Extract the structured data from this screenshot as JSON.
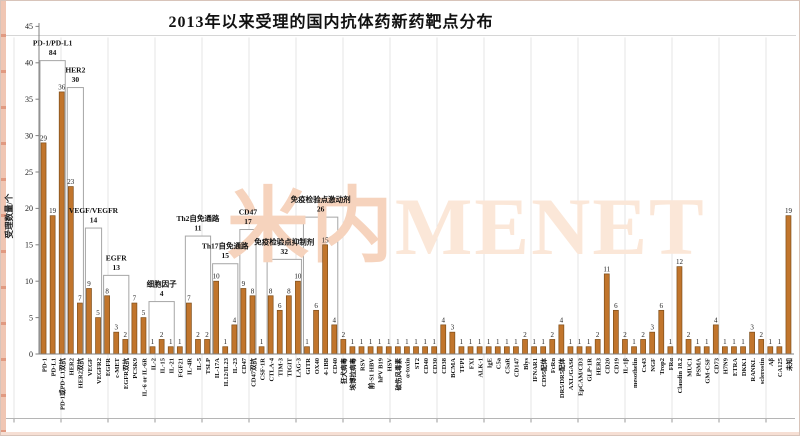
{
  "title": "2013年以来受理的国内抗体药新药靶点分布",
  "watermark": {
    "cn": "米内",
    "en": "MENET"
  },
  "colors": {
    "bar_fill": "#C1752C",
    "bar_stroke": "#7D4E1B",
    "axis": "#808080",
    "grid": "#E4E4E4",
    "box_stroke": "#A6A6A6",
    "box_fill": "#FFFFFF",
    "watermark_cn": "#F6D3BD",
    "watermark_en": "#FBE7D8",
    "text": "#1A1A1A"
  },
  "chart_data": {
    "type": "bar",
    "title": "2013年以来受理的国内抗体药新药靶点分布",
    "xlabel": "",
    "ylabel": "受理数量/个",
    "ylim": [
      0,
      45
    ],
    "ytick_step": 5,
    "grid": "vertical-light",
    "legend": "none",
    "categories": [
      "PD-1",
      "PD-L1",
      "PD-1或PD-L1双抗",
      "HER2",
      "HER2双抗",
      "VEGF",
      "VEGFR2",
      "EGFR",
      "c-MET",
      "EGFR双抗",
      "PCSK9",
      "IL-6 or IL-6R",
      "IL-2",
      "IL-15",
      "IL-21",
      "FGF21",
      "IL-4R",
      "IL-5",
      "TSLP",
      "IL-17A",
      "IL12/IL23",
      "IL-23",
      "CD47",
      "CD47双抗",
      "CSF-1R",
      "CTLA-4",
      "TIM-3",
      "TIGIT",
      "LAG-3",
      "GITR",
      "OX40",
      "4-1BB",
      "CD40",
      "狂犬病毒",
      "埃博拉病毒",
      "RSV",
      "前-S1 HBV",
      "hPV B19",
      "HSV",
      "破伤风毒素",
      "α-toxin",
      "ST2",
      "CD40",
      "CD30",
      "CD38",
      "BCMA",
      "TFPI",
      "FXI",
      "ALK-1",
      "IgE",
      "C5a",
      "C5aR",
      "CD147",
      "Blys",
      "IFNAR1",
      "CD95配体",
      "FcRn",
      "DR5/DR5配体",
      "AXL/GAS6",
      "EpCAM/CD3",
      "GLP-1R",
      "HER3",
      "CD20",
      "CD19",
      "IL-1β",
      "mesothelin",
      "Cx43",
      "NGF",
      "Trop2",
      "FRα",
      "Claudin 18.2",
      "MUC1",
      "PSMA",
      "GM-CSF",
      "CD73",
      "H7N9",
      "ETRA",
      "DKK1",
      "RANKL",
      "sclerostin",
      "Aβ",
      "CA125",
      "未知"
    ],
    "values": [
      29,
      19,
      36,
      23,
      7,
      9,
      5,
      8,
      3,
      2,
      7,
      5,
      1,
      2,
      1,
      1,
      7,
      2,
      2,
      10,
      1,
      4,
      9,
      8,
      1,
      8,
      6,
      8,
      10,
      1,
      6,
      15,
      4,
      2,
      1,
      1,
      1,
      1,
      1,
      1,
      1,
      1,
      1,
      1,
      4,
      3,
      1,
      1,
      1,
      1,
      1,
      1,
      1,
      2,
      1,
      1,
      2,
      4,
      1,
      1,
      1,
      2,
      11,
      6,
      2,
      1,
      2,
      3,
      6,
      1,
      12,
      2,
      1,
      1,
      4,
      1,
      1,
      1,
      3,
      2,
      1,
      1,
      19
    ],
    "groups": [
      {
        "label": "PD-1/PD-L1",
        "total": 84,
        "from": 0,
        "to": 2,
        "box_top": 40.3
      },
      {
        "label": "HER2",
        "total": 30,
        "from": 3,
        "to": 4,
        "box_top": 36.6
      },
      {
        "label": "VEGF/VEGFR",
        "total": 14,
        "from": 5,
        "to": 6,
        "box_top": 17.3
      },
      {
        "label": "EGFR",
        "total": 13,
        "from": 7,
        "to": 9,
        "box_top": 10.8
      },
      {
        "label": "细胞因子",
        "total": 4,
        "from": 12,
        "to": 14,
        "box_top": 7.2
      },
      {
        "label": "Th2自免通路",
        "total": 11,
        "from": 16,
        "to": 18,
        "box_top": 16.2
      },
      {
        "label": "Th17自免通路",
        "total": 15,
        "from": 19,
        "to": 21,
        "box_top": 12.4
      },
      {
        "label": "CD47",
        "total": 17,
        "from": 22,
        "to": 23,
        "box_top": 17.1
      },
      {
        "label": "免疫检验点抑制剂",
        "total": 32,
        "from": 25,
        "to": 28,
        "box_top": 13.0
      },
      {
        "label": "免疫检验点激动剂",
        "total": 26,
        "from": 29,
        "to": 32,
        "box_top": 18.8
      }
    ]
  }
}
